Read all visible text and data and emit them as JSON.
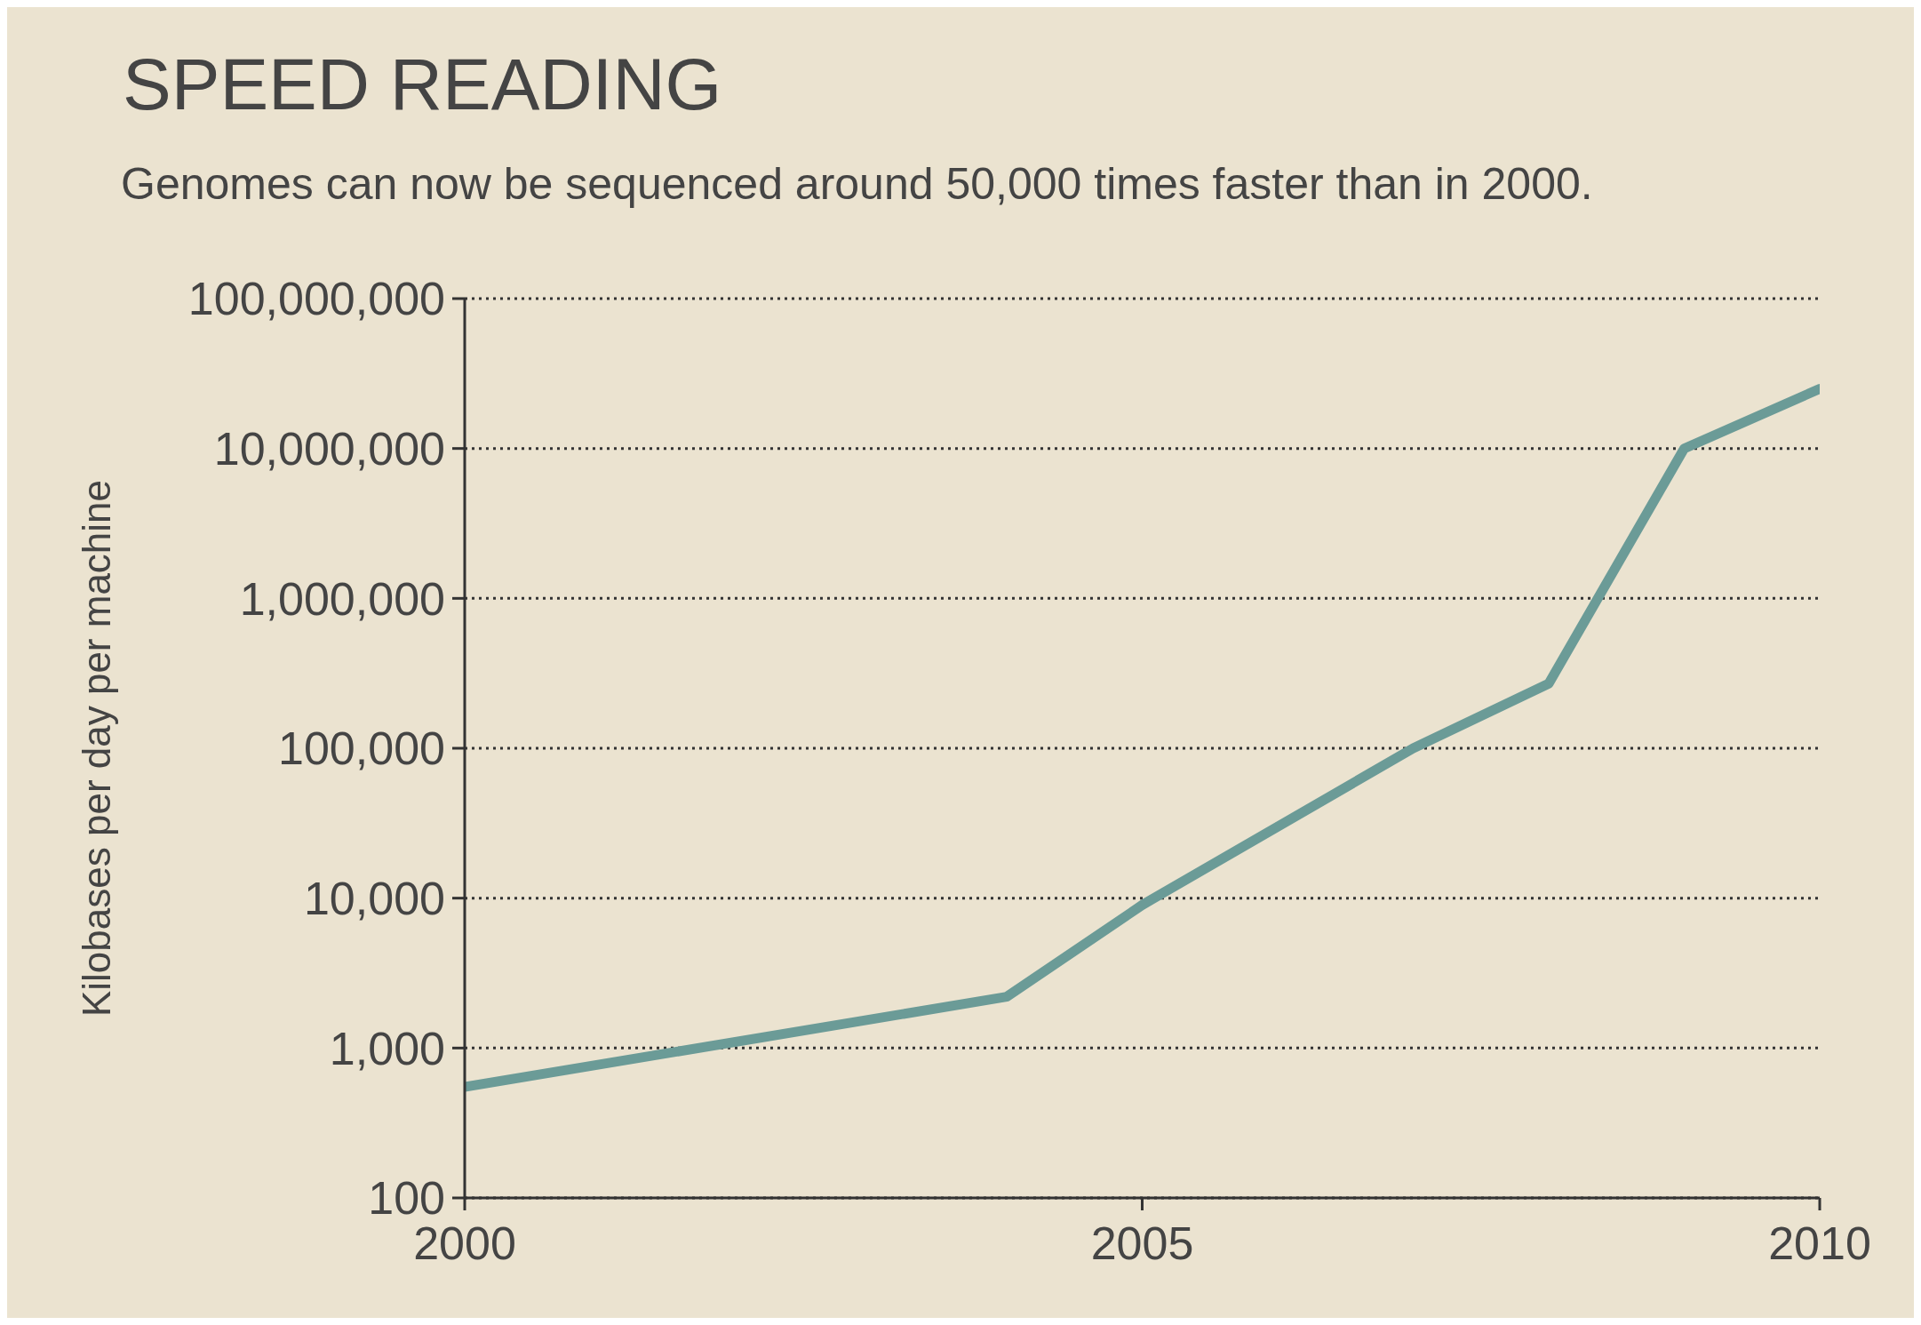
{
  "chart_data": {
    "type": "line",
    "title": "SPEED READING",
    "subtitle": "Genomes can now be sequenced around 50,000 times faster than in 2000.",
    "ylabel": "Kilobases per day per machine",
    "xlim": [
      2000,
      2010
    ],
    "xticks": [
      2000,
      2005,
      2010
    ],
    "ylim": [
      100,
      100000000
    ],
    "yticks": [
      {
        "value": 100,
        "label": "100"
      },
      {
        "value": 1000,
        "label": "1,000"
      },
      {
        "value": 10000,
        "label": "10,000"
      },
      {
        "value": 100000,
        "label": "100,000"
      },
      {
        "value": 1000000,
        "label": "1,000,000"
      },
      {
        "value": 10000000,
        "label": "10,000,000"
      },
      {
        "value": 100000000,
        "label": "100,000,000"
      }
    ],
    "log": "y",
    "grid": "y",
    "marker": "none",
    "line_style": "solid",
    "series": [
      {
        "color": "#6b9b97",
        "x": [
          2000,
          2004,
          2005,
          2007,
          2008,
          2009,
          2010
        ],
        "values": [
          550,
          2200,
          9000,
          100000,
          270000,
          10000000,
          25000000
        ]
      }
    ]
  }
}
